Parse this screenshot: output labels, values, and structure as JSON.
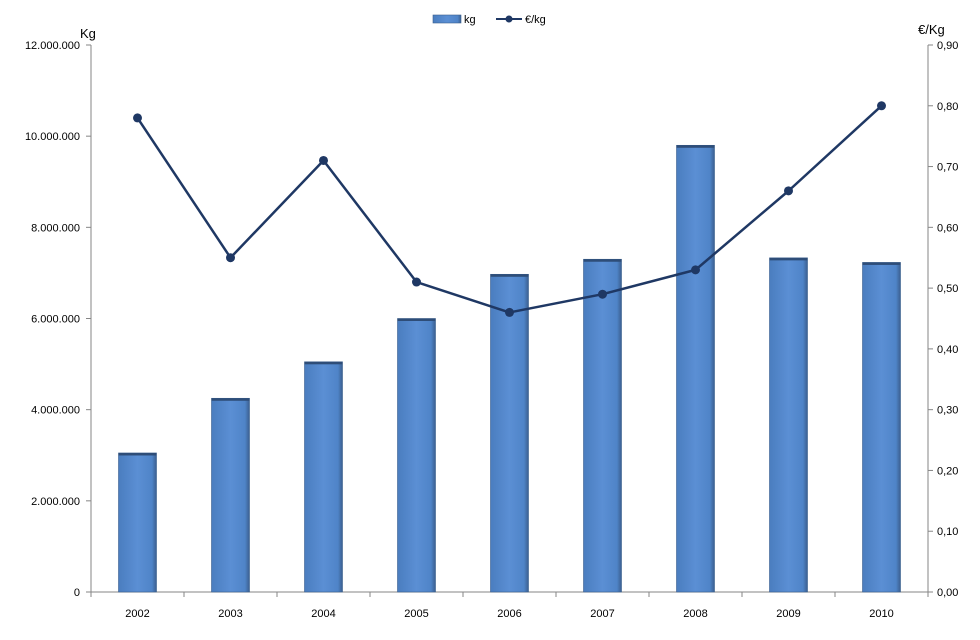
{
  "chart_data": {
    "type": "bar",
    "categories": [
      "2002",
      "2003",
      "2004",
      "2005",
      "2006",
      "2007",
      "2008",
      "2009",
      "2010"
    ],
    "series": [
      {
        "name": "kg",
        "chart_type": "bar",
        "axis": "left",
        "color": "#4F81BD",
        "values": [
          3050000,
          4250000,
          5050000,
          6000000,
          6970000,
          7300000,
          9800000,
          7330000,
          7230000
        ]
      },
      {
        "name": "€/kg",
        "chart_type": "line",
        "axis": "right",
        "color": "#1F3864",
        "values": [
          0.78,
          0.55,
          0.71,
          0.51,
          0.46,
          0.49,
          0.53,
          0.66,
          0.8
        ]
      }
    ],
    "y_left": {
      "label": "Kg",
      "ylim": [
        0,
        12000000
      ],
      "ticks": [
        0,
        2000000,
        4000000,
        6000000,
        8000000,
        10000000,
        12000000
      ],
      "tick_labels": [
        "0",
        "2.000.000",
        "4.000.000",
        "6.000.000",
        "8.000.000",
        "10.000.000",
        "12.000.000"
      ]
    },
    "y_right": {
      "label": "€/Kg",
      "ylim": [
        0,
        0.9
      ],
      "ticks": [
        0,
        0.1,
        0.2,
        0.3,
        0.4,
        0.5,
        0.6,
        0.7,
        0.8,
        0.9
      ],
      "tick_labels": [
        "0,00",
        "0,10",
        "0,20",
        "0,30",
        "0,40",
        "0,50",
        "0,60",
        "0,70",
        "0,80",
        "0,90"
      ]
    },
    "grid": false,
    "legend": "top-center"
  }
}
